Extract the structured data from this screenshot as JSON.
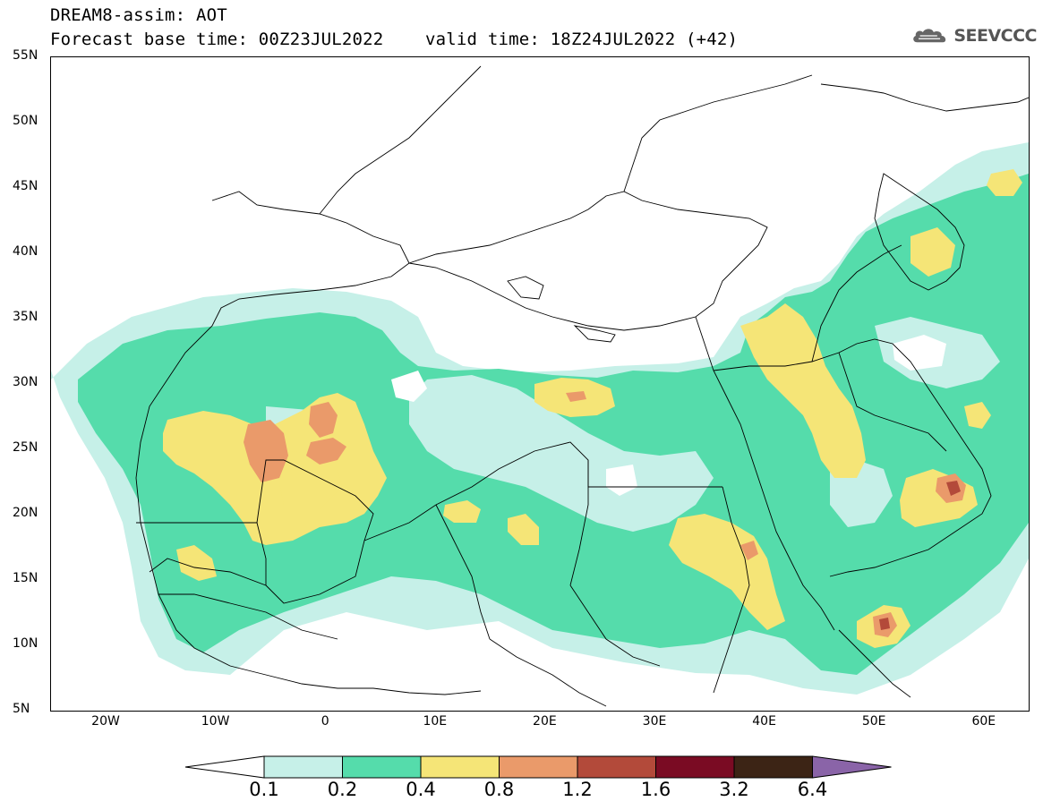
{
  "header": {
    "title_line1": "DREAM8-assim: AOT",
    "title_line2": "Forecast base time: 00Z23JUL2022    valid time: 18Z24JUL2022 (+42)",
    "logo_text": "SEEVCCC"
  },
  "map": {
    "lat_labels": [
      "55N",
      "50N",
      "45N",
      "40N",
      "35N",
      "30N",
      "25N",
      "20N",
      "15N",
      "10N",
      "5N"
    ],
    "lon_labels": [
      "20W",
      "10W",
      "0",
      "10E",
      "20E",
      "30E",
      "40E",
      "50E",
      "60E"
    ],
    "colors": {
      "c01": "#c6f0e8",
      "c02": "#55dcab",
      "c04": "#f5e577",
      "c08": "#ea9a6a",
      "c12": "#b34a3a",
      "c16": "#7a0b23",
      "c32": "#3c2415",
      "c64": "#8a64a8"
    }
  },
  "colorbar": {
    "labels": [
      "0.1",
      "0.2",
      "0.4",
      "0.8",
      "1.2",
      "1.6",
      "3.2",
      "6.4"
    ]
  }
}
